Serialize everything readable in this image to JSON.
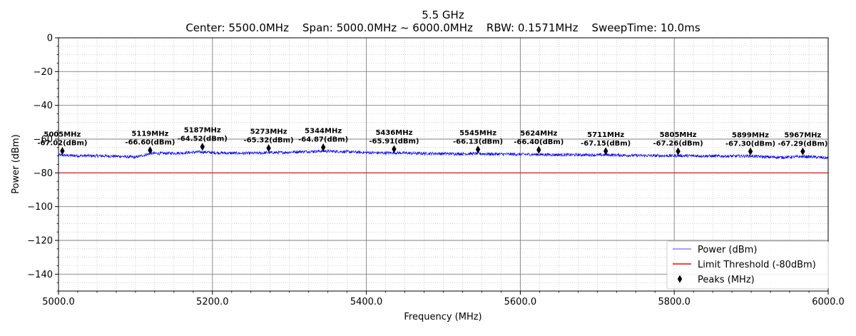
{
  "chart_data": {
    "type": "line",
    "title": "5.5 GHz",
    "subtitle": "Center: 5500.0MHz    Span: 5000.0MHz ~ 6000.0MHz    RBW: 0.1571MHz    SweepTime: 10.0ms",
    "xlabel": "Frequency (MHz)",
    "ylabel": "Power (dBm)",
    "xlim": [
      5000,
      6000
    ],
    "ylim": [
      -150,
      0
    ],
    "xticks": [
      5000,
      5200,
      5400,
      5600,
      5800,
      6000
    ],
    "xtick_labels": [
      "5000.0",
      "5200.0",
      "5400.0",
      "5600.0",
      "5800.0",
      "6000.0"
    ],
    "yticks": [
      0,
      -20,
      -40,
      -60,
      -80,
      -100,
      -120,
      -140
    ],
    "ytick_labels": [
      "0",
      "−20",
      "−40",
      "−60",
      "−80",
      "−100",
      "−120",
      "−140"
    ],
    "grid": true,
    "legend_position": "bottom-right",
    "series": [
      {
        "name": "Power (dBm)",
        "kind": "line",
        "color": "#0000ff",
        "x": [
          5000,
          5020,
          5040,
          5060,
          5080,
          5100,
          5110,
          5120,
          5140,
          5160,
          5175,
          5187,
          5200,
          5220,
          5240,
          5260,
          5273,
          5290,
          5310,
          5330,
          5344,
          5360,
          5380,
          5400,
          5420,
          5436,
          5460,
          5480,
          5500,
          5520,
          5545,
          5560,
          5580,
          5600,
          5624,
          5640,
          5660,
          5680,
          5700,
          5711,
          5730,
          5750,
          5770,
          5790,
          5805,
          5820,
          5840,
          5860,
          5880,
          5899,
          5920,
          5940,
          5960,
          5967,
          5980,
          6000
        ],
        "y": [
          -69.5,
          -69.8,
          -69.9,
          -70.0,
          -70.2,
          -70.8,
          -69.6,
          -68.5,
          -68.4,
          -68.2,
          -67.8,
          -67.6,
          -68.0,
          -68.3,
          -68.4,
          -68.3,
          -68.0,
          -68.0,
          -67.5,
          -67.3,
          -67.1,
          -67.3,
          -67.6,
          -68.0,
          -68.2,
          -68.1,
          -68.4,
          -68.5,
          -68.6,
          -68.7,
          -68.6,
          -68.8,
          -68.9,
          -69.0,
          -69.1,
          -69.2,
          -69.3,
          -69.3,
          -69.4,
          -69.3,
          -69.5,
          -69.7,
          -69.8,
          -69.9,
          -69.8,
          -69.9,
          -70.0,
          -70.1,
          -70.1,
          -70.0,
          -70.6,
          -70.8,
          -70.5,
          -70.3,
          -70.6,
          -71.2
        ]
      },
      {
        "name": "Limit Threshold (-80dBm)",
        "kind": "hline",
        "color": "#ff0000",
        "y": -80
      },
      {
        "name": "Peaks (MHz)",
        "kind": "marker",
        "color": "#000000",
        "points": [
          {
            "x": 5005,
            "y": -67.02,
            "freq_label": "5005MHz",
            "power_label": "-67.02(dBm)"
          },
          {
            "x": 5119,
            "y": -66.6,
            "freq_label": "5119MHz",
            "power_label": "-66.60(dBm)"
          },
          {
            "x": 5187,
            "y": -64.52,
            "freq_label": "5187MHz",
            "power_label": "-64.52(dBm)"
          },
          {
            "x": 5273,
            "y": -65.32,
            "freq_label": "5273MHz",
            "power_label": "-65.32(dBm)"
          },
          {
            "x": 5344,
            "y": -64.87,
            "freq_label": "5344MHz",
            "power_label": "-64.87(dBm)"
          },
          {
            "x": 5436,
            "y": -65.91,
            "freq_label": "5436MHz",
            "power_label": "-65.91(dBm)"
          },
          {
            "x": 5545,
            "y": -66.13,
            "freq_label": "5545MHz",
            "power_label": "-66.13(dBm)"
          },
          {
            "x": 5624,
            "y": -66.4,
            "freq_label": "5624MHz",
            "power_label": "-66.40(dBm)"
          },
          {
            "x": 5711,
            "y": -67.15,
            "freq_label": "5711MHz",
            "power_label": "-67.15(dBm)"
          },
          {
            "x": 5805,
            "y": -67.26,
            "freq_label": "5805MHz",
            "power_label": "-67.26(dBm)"
          },
          {
            "x": 5899,
            "y": -67.3,
            "freq_label": "5899MHz",
            "power_label": "-67.30(dBm)"
          },
          {
            "x": 5967,
            "y": -67.29,
            "freq_label": "5967MHz",
            "power_label": "-67.29(dBm)"
          }
        ]
      }
    ]
  }
}
